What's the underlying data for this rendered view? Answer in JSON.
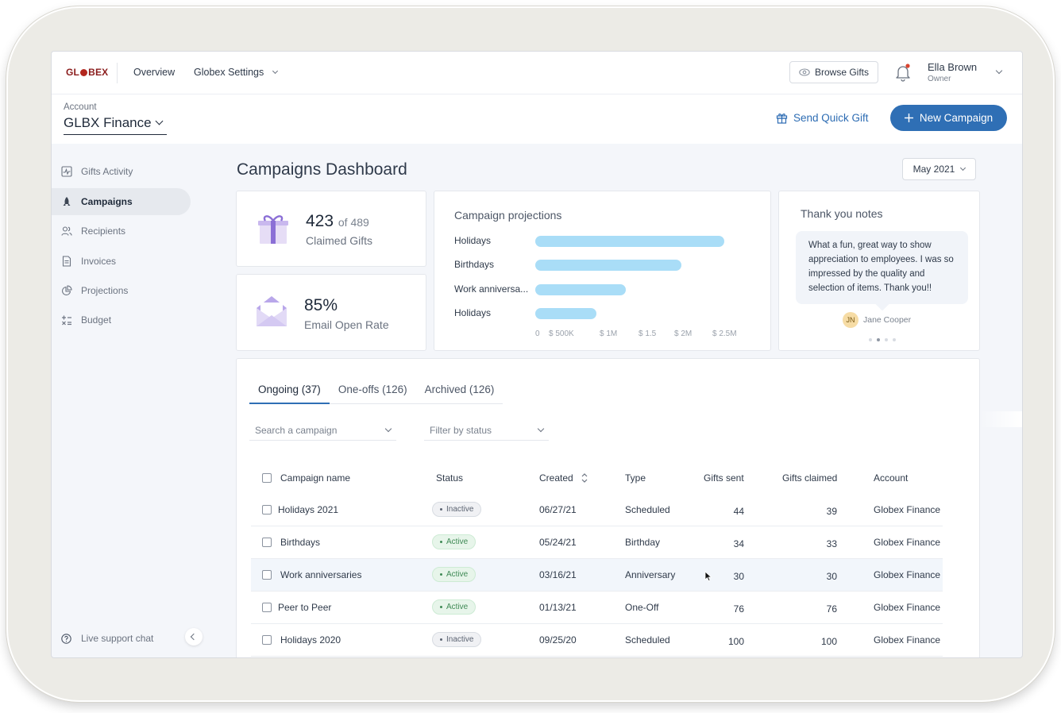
{
  "brand": {
    "logo_text_left": "GL",
    "logo_text_right": "BEX"
  },
  "topnav": {
    "overview": "Overview",
    "settings": "Globex Settings"
  },
  "header": {
    "browse_gifts": "Browse Gifts",
    "user_name": "Ella Brown",
    "user_role": "Owner"
  },
  "account": {
    "label": "Account",
    "name": "GLBX Finance",
    "send_quick_gift": "Send Quick Gift",
    "new_campaign": "New Campaign"
  },
  "sidebar": {
    "items": [
      {
        "label": "Gifts Activity",
        "icon": "activity-icon"
      },
      {
        "label": "Campaigns",
        "icon": "rocket-icon"
      },
      {
        "label": "Recipients",
        "icon": "users-icon"
      },
      {
        "label": "Invoices",
        "icon": "document-icon"
      },
      {
        "label": "Projections",
        "icon": "pie-icon"
      },
      {
        "label": "Budget",
        "icon": "budget-icon"
      }
    ],
    "support": "Live support chat"
  },
  "main": {
    "title": "Campaigns Dashboard",
    "month": "May 2021"
  },
  "stats": {
    "claimed": {
      "value": "423",
      "of": "of 489",
      "label": "Claimed Gifts"
    },
    "open_rate": {
      "value": "85%",
      "label": "Email Open Rate"
    }
  },
  "projections": {
    "title": "Campaign projections",
    "rows": [
      {
        "label": "Holidays",
        "fraction": 0.96
      },
      {
        "label": "Birthdays",
        "fraction": 0.74
      },
      {
        "label": "Work anniversa...",
        "fraction": 0.46
      },
      {
        "label": "Holidays",
        "fraction": 0.31
      }
    ],
    "ticks": [
      "0",
      "$ 500K",
      "$ 1M",
      "$ 1.5",
      "$ 2M",
      "$ 2.5M"
    ]
  },
  "thanks": {
    "title": "Thank you notes",
    "message": "What a fun, great way to show appreciation to employees. I was so impressed by the quality and selection of items. Thank you!!",
    "author_initials": "JN",
    "author": "Jane Cooper"
  },
  "tabs": [
    "Ongoing (37)",
    "One-offs (126)",
    "Archived (126)"
  ],
  "filters": {
    "search": "Search a campaign",
    "status": "Filter by status"
  },
  "table": {
    "headers": [
      "Campaign name",
      "Status",
      "Created",
      "Type",
      "Gifts sent",
      "Gifts claimed",
      "Account"
    ],
    "rows": [
      {
        "name": "Holidays 2021",
        "status": "Inactive",
        "created": "06/27/21",
        "type": "Scheduled",
        "sent": "44",
        "claimed": "39",
        "account": "Globex Finance"
      },
      {
        "name": "Birthdays",
        "status": "Active",
        "created": "05/24/21",
        "type": "Birthday",
        "sent": "34",
        "claimed": "33",
        "account": "Globex Finance"
      },
      {
        "name": "Work anniversaries",
        "status": "Active",
        "created": "03/16/21",
        "type": "Anniversary",
        "sent": "30",
        "claimed": "30",
        "account": "Globex Finance"
      },
      {
        "name": "Peer to Peer",
        "status": "Active",
        "created": "01/13/21",
        "type": "One-Off",
        "sent": "76",
        "claimed": "76",
        "account": "Globex Finance"
      },
      {
        "name": "Holidays 2020",
        "status": "Inactive",
        "created": "09/25/20",
        "type": "Scheduled",
        "sent": "100",
        "claimed": "100",
        "account": "Globex Finance"
      }
    ]
  },
  "colors": {
    "accent": "#2f6fb5",
    "bar": "#a9ddf7",
    "active": "#3f8a55",
    "brand": "#8a1c1c"
  }
}
